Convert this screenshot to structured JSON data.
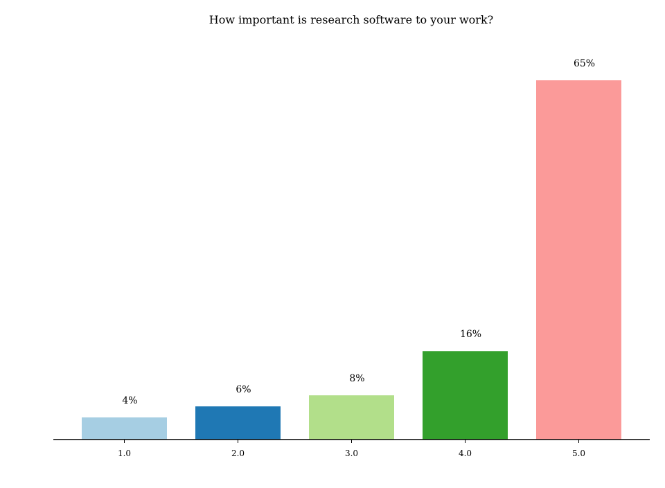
{
  "chart_data": {
    "type": "bar",
    "title": "How important is research software to your work?",
    "categories": [
      "1.0",
      "2.0",
      "3.0",
      "4.0",
      "5.0"
    ],
    "values": [
      4,
      6,
      8,
      16,
      65
    ],
    "value_labels": [
      "4%",
      "6%",
      "8%",
      "16%",
      "65%"
    ],
    "colors": [
      "#a6cee3",
      "#1f78b4",
      "#b2df8a",
      "#33a02c",
      "#fb9a99"
    ],
    "xlabel": "",
    "ylabel": "",
    "ylim": [
      0,
      70
    ],
    "grid": false,
    "legend": "none"
  }
}
